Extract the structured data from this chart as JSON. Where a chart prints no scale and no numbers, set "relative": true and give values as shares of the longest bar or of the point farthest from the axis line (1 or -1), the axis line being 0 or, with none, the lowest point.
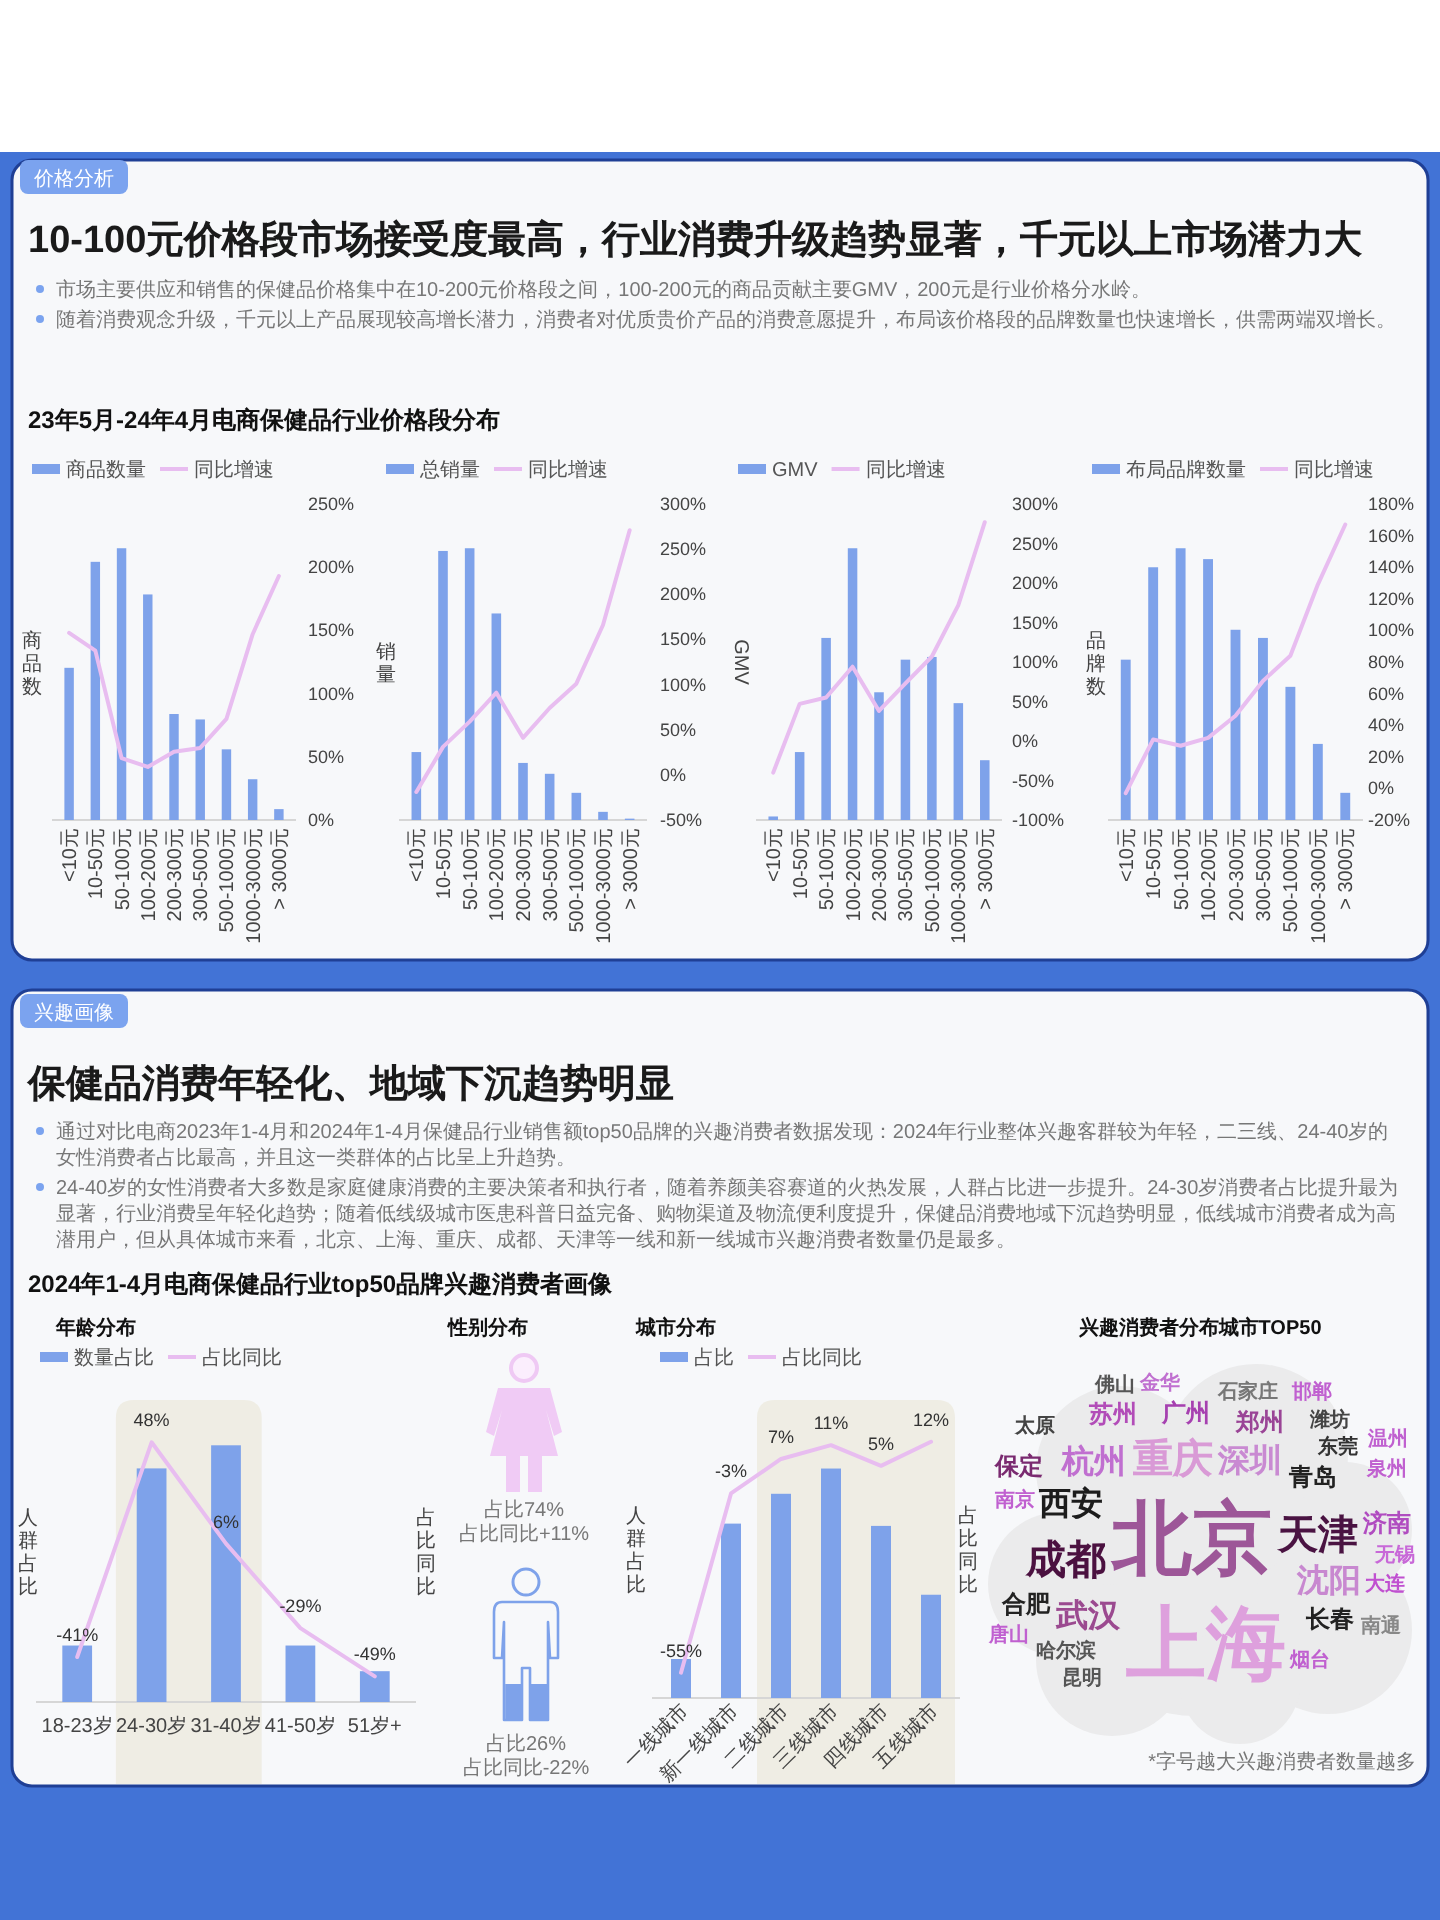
{
  "chart_data": [
    {
      "type": "line",
      "categories": [
        "<10元",
        "10-50元",
        "50-100元",
        "100-200元",
        "200-300元",
        "300-500元",
        "500-1000元",
        "1000-3000元",
        "> 3000元"
      ],
      "tick_labels": "y",
      "legend": "top",
      "ylim": [
        0,
        250
      ],
      "yticks": [
        {
          "value": 0,
          "label": "0%"
        },
        {
          "value": 50,
          "label": "50%"
        },
        {
          "value": 100,
          "label": "100%"
        },
        {
          "value": 150,
          "label": "150%"
        },
        {
          "value": 200,
          "label": "200%"
        },
        {
          "value": 250,
          "label": "250%"
        }
      ],
      "series": [
        {
          "name": "同比增速",
          "color": "#e8bdf0",
          "values": [
            148,
            134,
            49,
            42,
            54,
            57,
            80,
            147,
            193
          ]
        }
      ]
    },
    {
      "type": "bar",
      "relative": true,
      "title": "23年5月-24年4月电商保健品行业价格段分布",
      "annotations": [
        "价格分析",
        "10-100元价格段市场接受度最高，行业消费升级趋势显著，千元以上市场潜力大",
        "市场主要供应和销售的保健品价格集中在10-200元价格段之间，100-200元的商品贡献主要GMV，200元是行业价格分水岭。",
        "随着消费观念升级，千元以上产品展现较高增长潜力，消费者对优质贵价产品的消费意愿提升，布局该价格段的品牌数量也快速增长，供需两端双增长。"
      ],
      "categories": [
        "<10元",
        "10-50元",
        "50-100元",
        "100-200元",
        "200-300元",
        "300-500元",
        "500-1000元",
        "1000-3000元",
        "> 3000元"
      ],
      "ylabel": "商品数",
      "legend": "top",
      "series": [
        {
          "name": "商品数量",
          "color": "#7ea2ea",
          "values": [
            0.56,
            0.95,
            1,
            0.83,
            0.39,
            0.37,
            0.26,
            0.15,
            0.04
          ]
        }
      ]
    },
    {
      "type": "line",
      "categories": [
        "<10元",
        "10-50元",
        "50-100元",
        "100-200元",
        "200-300元",
        "300-500元",
        "500-1000元",
        "1000-3000元",
        "> 3000元"
      ],
      "tick_labels": "y",
      "legend": "top",
      "ylim": [
        -50,
        300
      ],
      "yticks": [
        {
          "value": -50,
          "label": "-50%"
        },
        {
          "value": 0,
          "label": "0%"
        },
        {
          "value": 50,
          "label": "50%"
        },
        {
          "value": 100,
          "label": "100%"
        },
        {
          "value": 150,
          "label": "150%"
        },
        {
          "value": 200,
          "label": "200%"
        },
        {
          "value": 250,
          "label": "250%"
        },
        {
          "value": 300,
          "label": "300%"
        }
      ],
      "series": [
        {
          "name": "同比增速",
          "color": "#e8bdf0",
          "values": [
            -19,
            31,
            59,
            91,
            41,
            74,
            101,
            166,
            271
          ]
        }
      ]
    },
    {
      "type": "bar",
      "relative": true,
      "categories": [
        "<10元",
        "10-50元",
        "50-100元",
        "100-200元",
        "200-300元",
        "300-500元",
        "500-1000元",
        "1000-3000元",
        "> 3000元"
      ],
      "ylabel": "销量",
      "legend": "top",
      "series": [
        {
          "name": "总销量",
          "color": "#7ea2ea",
          "values": [
            0.25,
            0.99,
            1,
            0.76,
            0.21,
            0.17,
            0.1,
            0.03,
            0.005
          ]
        }
      ]
    },
    {
      "type": "line",
      "categories": [
        "<10元",
        "10-50元",
        "50-100元",
        "100-200元",
        "200-300元",
        "300-500元",
        "500-1000元",
        "1000-3000元",
        "> 3000元"
      ],
      "tick_labels": "y",
      "legend": "top",
      "ylim": [
        -100,
        300
      ],
      "yticks": [
        {
          "value": -100,
          "label": "-100%"
        },
        {
          "value": -50,
          "label": "-50%"
        },
        {
          "value": 0,
          "label": "0%"
        },
        {
          "value": 50,
          "label": "50%"
        },
        {
          "value": 100,
          "label": "100%"
        },
        {
          "value": 150,
          "label": "150%"
        },
        {
          "value": 200,
          "label": "200%"
        },
        {
          "value": 250,
          "label": "250%"
        },
        {
          "value": 300,
          "label": "300%"
        }
      ],
      "series": [
        {
          "name": "同比增速",
          "color": "#e8bdf0",
          "values": [
            -40,
            47,
            55,
            94,
            38,
            73,
            107,
            172,
            277
          ]
        }
      ]
    },
    {
      "type": "bar",
      "relative": true,
      "categories": [
        "<10元",
        "10-50元",
        "50-100元",
        "100-200元",
        "200-300元",
        "300-500元",
        "500-1000元",
        "1000-3000元",
        "> 3000元"
      ],
      "ylabel": "GMV",
      "legend": "top",
      "series": [
        {
          "name": "GMV",
          "color": "#7ea2ea",
          "values": [
            0.013,
            0.25,
            0.67,
            1,
            0.47,
            0.59,
            0.6,
            0.43,
            0.22
          ]
        }
      ]
    },
    {
      "type": "line",
      "categories": [
        "<10元",
        "10-50元",
        "50-100元",
        "100-200元",
        "200-300元",
        "300-500元",
        "500-1000元",
        "1000-3000元",
        "> 3000元"
      ],
      "tick_labels": "y",
      "legend": "top",
      "ylim": [
        -20,
        180
      ],
      "yticks": [
        {
          "value": -20,
          "label": "-20%"
        },
        {
          "value": 0,
          "label": "0%"
        },
        {
          "value": 20,
          "label": "20%"
        },
        {
          "value": 40,
          "label": "40%"
        },
        {
          "value": 60,
          "label": "60%"
        },
        {
          "value": 80,
          "label": "80%"
        },
        {
          "value": 100,
          "label": "100%"
        },
        {
          "value": 120,
          "label": "120%"
        },
        {
          "value": 140,
          "label": "140%"
        },
        {
          "value": 160,
          "label": "160%"
        },
        {
          "value": 180,
          "label": "180%"
        }
      ],
      "series": [
        {
          "name": "同比增速",
          "color": "#e8bdf0",
          "values": [
            -3,
            31,
            27,
            32,
            46,
            68,
            84,
            129,
            167
          ]
        }
      ]
    },
    {
      "type": "bar",
      "relative": true,
      "categories": [
        "<10元",
        "10-50元",
        "50-100元",
        "100-200元",
        "200-300元",
        "300-500元",
        "500-1000元",
        "1000-3000元",
        "> 3000元"
      ],
      "ylabel": "品牌数",
      "legend": "top",
      "series": [
        {
          "name": "布局品牌数量",
          "color": "#7ea2ea",
          "values": [
            0.59,
            0.93,
            1,
            0.96,
            0.7,
            0.67,
            0.49,
            0.28,
            0.1
          ]
        }
      ]
    },
    {
      "type": "line",
      "categories": [
        "18-23岁",
        "24-30岁",
        "31-40岁",
        "41-50岁",
        "51岁+"
      ],
      "tick_labels": false,
      "ylabel": "占比同比",
      "legend": "top",
      "series": [
        {
          "name": "占比同比",
          "color": "#e8bdf0",
          "values": [
            -41,
            48,
            6,
            -29,
            -49
          ],
          "value_labels": [
            "-41%",
            "48%",
            "6%",
            "-29%",
            "-49%"
          ]
        }
      ]
    },
    {
      "type": "bar",
      "relative": true,
      "title": "年龄分布",
      "subtitle": "2024年1-4月电商保健品行业top50品牌兴趣消费者画像",
      "annotations": [
        "兴趣画像",
        "保健品消费年轻化、地域下沉趋势明显",
        "通过对比电商2023年1-4月和2024年1-4月保健品行业销售额top50品牌的兴趣消费者数据发现：2024年行业整体兴趣客群较为年轻，二三线、24-40岁的女性消费者占比最高，并且这一类群体的占比呈上升趋势。",
        "24-40岁的女性消费者大多数是家庭健康消费的主要决策者和执行者，随着养颜美容赛道的火热发展，人群占比进一步提升。24-30岁消费者占比提升最为显著，行业消费呈年轻化趋势；随着低线级城市医患科普日益完备、购物渠道及物流便利度提升，保健品消费地域下沉趋势明显，低线城市消费者成为高潜用户，但从具体城市来看，北京、上海、重庆、成都、天津等一线和新一线城市兴趣消费者数量仍是最多。"
      ],
      "categories": [
        "18-23岁",
        "24-30岁",
        "31-40岁",
        "41-50岁",
        "51岁+"
      ],
      "ylabel": "人群占比",
      "legend": "top",
      "bands": [
        {
          "axis": "x",
          "from": "24-30岁",
          "to": "31-40岁",
          "color": "#efede4"
        }
      ],
      "series": [
        {
          "name": "数量占比",
          "color": "#7ea2ea",
          "values": [
            0.22,
            0.91,
            1,
            0.22,
            0.12
          ]
        }
      ]
    },
    {
      "type": "other",
      "title": "性别分布",
      "annotations": [
        "占比74%",
        "占比同比+11%",
        "占比26%",
        "占比同比-22%"
      ]
    },
    {
      "type": "line",
      "categories": [
        "一线城市",
        "新一线城市",
        "二线城市",
        "三线城市",
        "四线城市",
        "五线城市"
      ],
      "tick_labels": false,
      "ylabel": "占比同比",
      "legend": "top",
      "series": [
        {
          "name": "占比同比",
          "color": "#e8bdf0",
          "values": [
            -55,
            -3,
            7,
            11,
            5,
            12
          ],
          "value_labels": [
            "-55%",
            "-3%",
            "7%",
            "11%",
            "5%",
            "12%"
          ]
        }
      ]
    },
    {
      "type": "bar",
      "relative": true,
      "title": "城市分布",
      "categories": [
        "一线城市",
        "新一线城市",
        "二线城市",
        "三线城市",
        "四线城市",
        "五线城市"
      ],
      "ylabel": "人群占比",
      "legend": "top",
      "bands": [
        {
          "axis": "x",
          "from": "二线城市",
          "to": "五线城市",
          "color": "#efede4"
        }
      ],
      "series": [
        {
          "name": "占比",
          "color": "#7ea2ea",
          "values": [
            0.17,
            0.76,
            0.89,
            1,
            0.75,
            0.45
          ]
        }
      ]
    },
    {
      "type": "other",
      "title": "兴趣消费者分布城市TOP50",
      "categories": [
        "北京",
        "上海",
        "重庆",
        "天津",
        "成都",
        "深圳",
        "西安",
        "杭州",
        "沈阳",
        "武汉",
        "青岛",
        "广州",
        "郑州",
        "长春",
        "合肥",
        "苏州",
        "济南",
        "保定",
        "南京",
        "东莞",
        "哈尔滨",
        "石家庄",
        "无锡",
        "大连",
        "烟台",
        "潍坊",
        "泉州",
        "太原",
        "金华",
        "南通",
        "昆明",
        "唐山",
        "佛山",
        "邯郸",
        "温州"
      ],
      "colors": [
        "#9d5698",
        "#dea0dd",
        "#d99ad6",
        "#4a1342",
        "#4b1140",
        "#c98ad2",
        "#1c1c1c",
        "#c06fd0",
        "#c888d0",
        "#9b4a90",
        "#222222",
        "#a640b0",
        "#9a4496",
        "#222222",
        "#222222",
        "#b24cb8",
        "#b04cc0",
        "#7a2a70",
        "#c060d0",
        "#333333",
        "#555555",
        "#777777",
        "#c868d8",
        "#c050d0",
        "#c060d0",
        "#444444",
        "#c060d0",
        "#444444",
        "#c070d0",
        "#888888",
        "#555555",
        "#c060d0",
        "#555555",
        "#c060d0",
        "#c060d0"
      ],
      "annotations": [
        "*字号越大兴趣消费者数量越多"
      ]
    }
  ]
}
